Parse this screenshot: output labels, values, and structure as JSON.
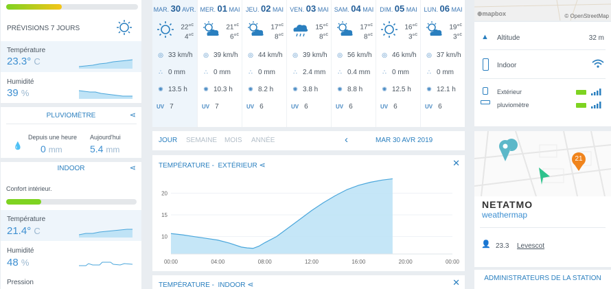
{
  "left": {
    "forecast_label": "PRÉVISIONS 7 JOURS",
    "top_bar_pct": 42,
    "temperature": {
      "label": "Température",
      "value": "23.3°",
      "unit": "C"
    },
    "humidity": {
      "label": "Humidité",
      "value": "39",
      "unit": "%"
    }
  },
  "pluvio": {
    "title": "PLUVIOMÈTRE",
    "last_hour_label": "Depuis une heure",
    "last_hour_value": "0",
    "last_hour_unit": "mm",
    "today_label": "Aujourd'hui",
    "today_value": "5.4",
    "today_unit": "mm"
  },
  "indoor": {
    "title": "INDOOR",
    "comfort_label": "Confort intérieur.",
    "comfort_pct": 27,
    "temperature": {
      "label": "Température",
      "value": "21.4°",
      "unit": "C"
    },
    "humidity": {
      "label": "Humidité",
      "value": "48",
      "unit": "%"
    },
    "pressure_label": "Pression"
  },
  "forecast": {
    "days": [
      {
        "dow": "MAR.",
        "num": "30",
        "month": "AVR.",
        "max": "22°",
        "min": "4°",
        "wind": "33 km/h",
        "rain": "0 mm",
        "sun": "13.5 h",
        "uv": "7",
        "icon": "sun-icon"
      },
      {
        "dow": "MER.",
        "num": "01",
        "month": "MAI",
        "max": "21°",
        "min": "6°",
        "wind": "39 km/h",
        "rain": "0 mm",
        "sun": "10.3 h",
        "uv": "7",
        "icon": "partly-cloudy-icon"
      },
      {
        "dow": "JEU.",
        "num": "02",
        "month": "MAI",
        "max": "17°",
        "min": "8°",
        "wind": "44 km/h",
        "rain": "0 mm",
        "sun": "8.2 h",
        "uv": "6",
        "icon": "partly-cloudy-icon"
      },
      {
        "dow": "VEN.",
        "num": "03",
        "month": "MAI",
        "max": "15°",
        "min": "8°",
        "wind": "39 km/h",
        "rain": "2.4 mm",
        "sun": "3.8 h",
        "uv": "6",
        "icon": "rain-cloud-icon"
      },
      {
        "dow": "SAM.",
        "num": "04",
        "month": "MAI",
        "max": "17°",
        "min": "8°",
        "wind": "56 km/h",
        "rain": "0.4 mm",
        "sun": "8.8 h",
        "uv": "6",
        "icon": "partly-cloudy-icon"
      },
      {
        "dow": "DIM.",
        "num": "05",
        "month": "MAI",
        "max": "16°",
        "min": "3°",
        "wind": "46 km/h",
        "rain": "0 mm",
        "sun": "12.5 h",
        "uv": "6",
        "icon": "sun-icon"
      },
      {
        "dow": "LUN.",
        "num": "06",
        "month": "MAI",
        "max": "19°",
        "min": "3°",
        "wind": "37 km/h",
        "rain": "0 mm",
        "sun": "12.1 h",
        "uv": "6",
        "icon": "partly-cloudy-icon"
      }
    ],
    "temp_unit": "c",
    "uv_label": "UV"
  },
  "period": {
    "tabs": [
      "JOUR",
      "SEMAINE",
      "MOIS",
      "ANNÉE"
    ],
    "date": "MAR 30 AVR 2019"
  },
  "chart1": {
    "title": "TEMPÉRATURE -",
    "subtitle": "EXTÉRIEUR",
    "close": "✕"
  },
  "chart2": {
    "title": "TEMPÉRATURE -",
    "subtitle": "INDOOR",
    "close": "✕"
  },
  "chart_data": {
    "type": "area",
    "title": "",
    "x_ticks": [
      "00:00",
      "04:00",
      "08:00",
      "12:00",
      "16:00",
      "20:00",
      "00:00"
    ],
    "y_ticks": [
      10,
      15,
      20
    ],
    "xlim": [
      0,
      24
    ],
    "ylim": [
      6,
      24
    ],
    "x": [
      0,
      1,
      2,
      3,
      4,
      5,
      6,
      6.5,
      7,
      7.5,
      8,
      9,
      10,
      11,
      12,
      13,
      14,
      15,
      16,
      17,
      18,
      18.9
    ],
    "y": [
      10.7,
      10.4,
      10.0,
      9.6,
      9.2,
      8.5,
      7.6,
      7.4,
      7.3,
      7.8,
      8.6,
      10.0,
      12.0,
      14.0,
      16.0,
      17.8,
      19.4,
      20.8,
      21.8,
      22.5,
      23.0,
      23.3
    ],
    "color": "#4aa6db",
    "fill": "#bfe3f6"
  },
  "map_top": {
    "attribution": "© OpenStreetMap",
    "brand": "mapbox"
  },
  "info": {
    "altitude_label": "Altitude",
    "altitude_value": "32 m",
    "indoor_label": "Indoor",
    "exterior_label": "Extérieur",
    "pluvio_label": "pluviomètre"
  },
  "map2": {
    "marker_value": "21",
    "brand": "NETATMO",
    "sub": "weathermap",
    "user_count": "23.3",
    "location": "Levescot"
  },
  "admin": {
    "title": "ADMINISTRATEURS DE LA STATION"
  },
  "colors": {
    "accent": "#2a7fbf",
    "green": "#7ed321",
    "orange": "#f0841c",
    "teal": "#5cb8c9"
  }
}
